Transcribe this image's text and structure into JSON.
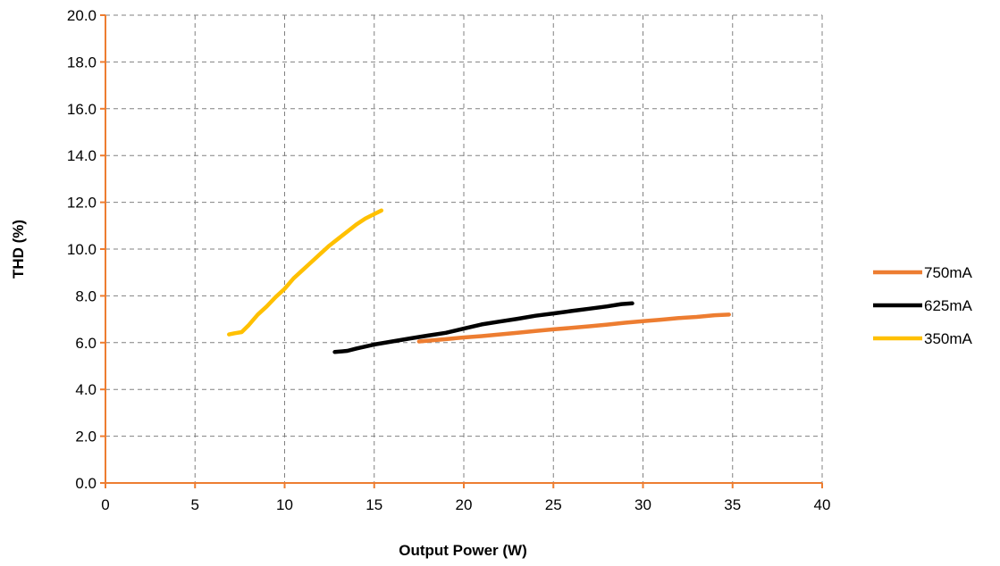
{
  "chart_data": {
    "type": "line",
    "title": "",
    "xlabel": "Output Power (W)",
    "ylabel": "THD (%)",
    "xlim": [
      0,
      40
    ],
    "ylim": [
      0,
      20
    ],
    "x_ticks": [
      0,
      5,
      10,
      15,
      20,
      25,
      30,
      35,
      40
    ],
    "x_tick_labels": [
      "0",
      "5",
      "10",
      "15",
      "20",
      "25",
      "30",
      "35",
      "40"
    ],
    "y_ticks": [
      0,
      2,
      4,
      6,
      8,
      10,
      12,
      14,
      16,
      18,
      20
    ],
    "y_tick_labels": [
      "0.0",
      "2.0",
      "4.0",
      "6.0",
      "8.0",
      "10.0",
      "12.0",
      "14.0",
      "16.0",
      "18.0",
      "20.0"
    ],
    "grid": true,
    "legend_position": "right",
    "axis_color": "#ED7D31",
    "grid_color": "#808080",
    "series": [
      {
        "name": "750mA",
        "color": "#ED7D31",
        "x": [
          17.5,
          19,
          20,
          21,
          22,
          23,
          24,
          25,
          26,
          27,
          28,
          29,
          30,
          31,
          32,
          33,
          34,
          34.8
        ],
        "y": [
          6.05,
          6.15,
          6.22,
          6.28,
          6.35,
          6.42,
          6.5,
          6.57,
          6.63,
          6.7,
          6.77,
          6.85,
          6.92,
          6.98,
          7.05,
          7.1,
          7.17,
          7.2
        ]
      },
      {
        "name": "625mA",
        "color": "#000000",
        "x": [
          12.8,
          13.5,
          14,
          15,
          16,
          17,
          18,
          19,
          20,
          21,
          22,
          23,
          24,
          25,
          26,
          27,
          28,
          28.8,
          29.4
        ],
        "y": [
          5.6,
          5.65,
          5.75,
          5.92,
          6.05,
          6.18,
          6.3,
          6.42,
          6.6,
          6.78,
          6.9,
          7.02,
          7.15,
          7.25,
          7.35,
          7.45,
          7.55,
          7.65,
          7.68
        ]
      },
      {
        "name": "350mA",
        "color": "#FFC000",
        "x": [
          6.9,
          7.2,
          7.6,
          8,
          8.5,
          9,
          9.5,
          10,
          10.5,
          11,
          11.5,
          12,
          12.5,
          13,
          13.5,
          14,
          14.5,
          15,
          15.4
        ],
        "y": [
          6.35,
          6.4,
          6.45,
          6.75,
          7.2,
          7.55,
          7.95,
          8.3,
          8.75,
          9.1,
          9.45,
          9.8,
          10.15,
          10.45,
          10.75,
          11.05,
          11.3,
          11.5,
          11.65
        ]
      }
    ]
  }
}
